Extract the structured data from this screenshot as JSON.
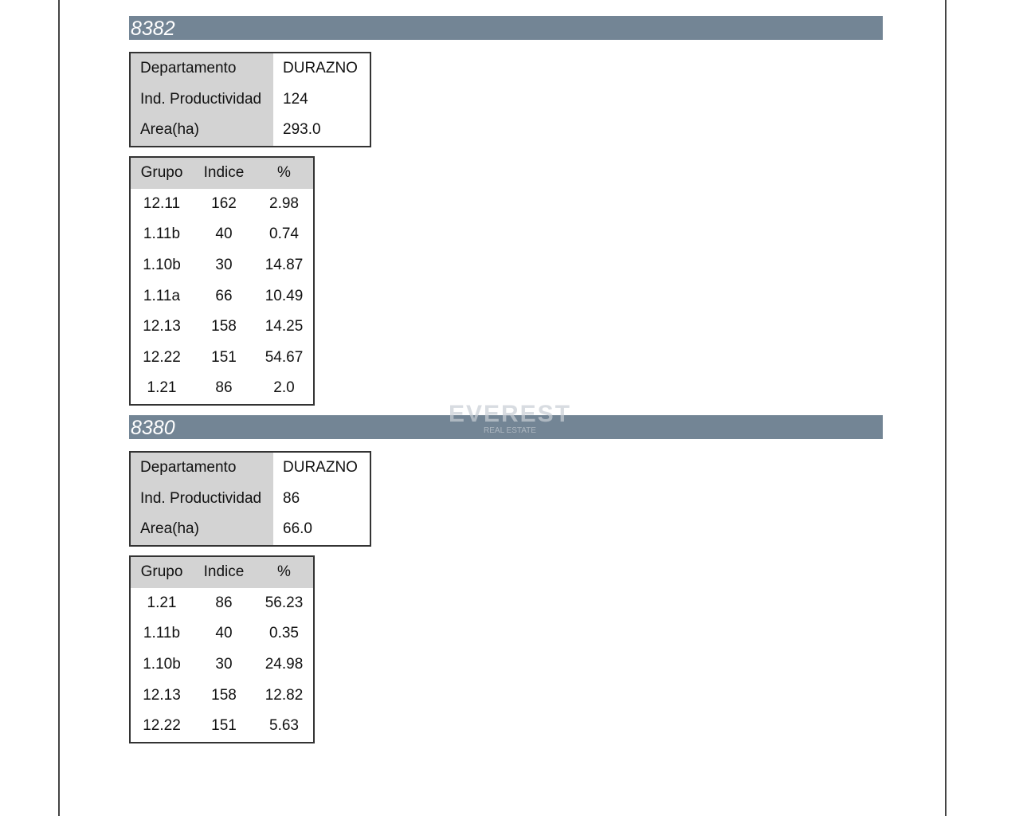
{
  "sections": [
    {
      "id": "8382",
      "info": [
        [
          "Departamento",
          "DURAZNO"
        ],
        [
          "Ind. Productividad",
          "124"
        ],
        [
          "Area(ha)",
          "293.0"
        ]
      ],
      "groups": {
        "header": [
          "Grupo",
          "Indice",
          "%"
        ],
        "rows": [
          [
            "12.11",
            "162",
            "2.98"
          ],
          [
            "1.11b",
            "40",
            "0.74"
          ],
          [
            "1.10b",
            "30",
            "14.87"
          ],
          [
            "1.11a",
            "66",
            "10.49"
          ],
          [
            "12.13",
            "158",
            "14.25"
          ],
          [
            "12.22",
            "151",
            "54.67"
          ],
          [
            "1.21",
            "86",
            "2.0"
          ]
        ]
      }
    },
    {
      "id": "8380",
      "info": [
        [
          "Departamento",
          "DURAZNO"
        ],
        [
          "Ind. Productividad",
          "86"
        ],
        [
          "Area(ha)",
          "66.0"
        ]
      ],
      "groups": {
        "header": [
          "Grupo",
          "Indice",
          "%"
        ],
        "rows": [
          [
            "1.21",
            "86",
            "56.23"
          ],
          [
            "1.11b",
            "40",
            "0.35"
          ],
          [
            "1.10b",
            "30",
            "24.98"
          ],
          [
            "12.13",
            "158",
            "12.82"
          ],
          [
            "12.22",
            "151",
            "5.63"
          ]
        ]
      }
    }
  ],
  "watermark": {
    "title": "EVEREST",
    "subtitle": "REAL ESTATE"
  }
}
